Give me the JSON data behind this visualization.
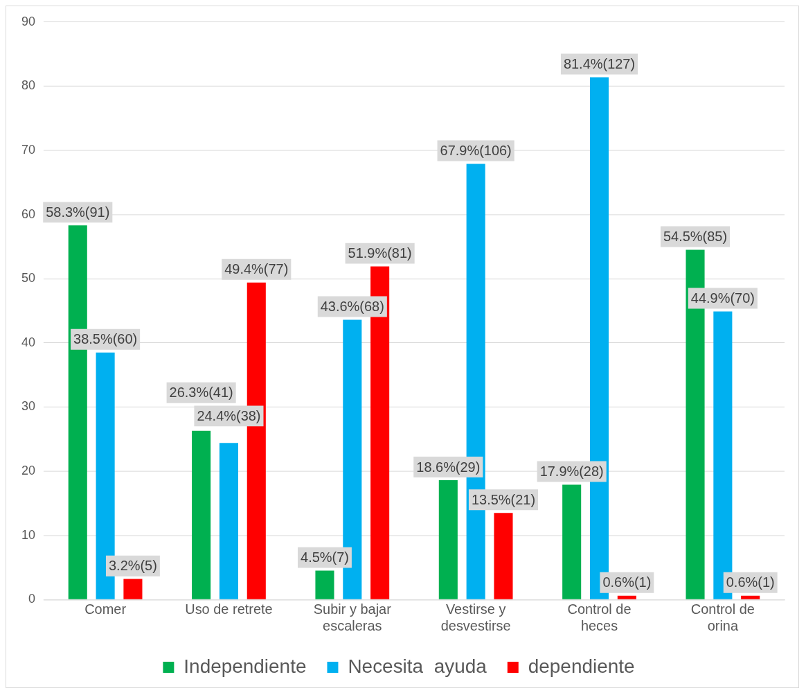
{
  "chart_data": {
    "type": "bar",
    "categories": [
      "Comer",
      "Uso de retrete",
      "Subir y bajar escaleras",
      "Vestirse y desvestirse",
      "Control de heces",
      "Control de orina"
    ],
    "series": [
      {
        "name": "Independiente",
        "color": "#00b050",
        "values": [
          58.3,
          26.3,
          4.5,
          18.6,
          17.9,
          54.5
        ],
        "value_labels": [
          "58.3%(91)",
          "26.3%(41)",
          "4.5%(7)",
          "18.6%(29)",
          "17.9%(28)",
          "54.5%(85)"
        ]
      },
      {
        "name": "Necesita  ayuda",
        "color": "#00b0f0",
        "values": [
          38.5,
          24.4,
          43.6,
          67.9,
          81.4,
          44.9
        ],
        "value_labels": [
          "38.5%(60)",
          "24.4%(38)",
          "43.6%(68)",
          "67.9%(106)",
          "81.4%(127)",
          "44.9%(70)"
        ]
      },
      {
        "name": "dependiente",
        "color": "#ff0000",
        "values": [
          3.2,
          49.4,
          51.9,
          13.5,
          0.6,
          0.6
        ],
        "value_labels": [
          "3.2%(5)",
          "49.4%(77)",
          "51.9%(81)",
          "13.5%(21)",
          "0.6%(1)",
          "0.6%(1)"
        ]
      }
    ],
    "ylim": [
      0,
      90
    ],
    "yticks": [
      0,
      10,
      20,
      30,
      40,
      50,
      60,
      70,
      80,
      90
    ],
    "grid": "y",
    "legend": "bottom"
  }
}
